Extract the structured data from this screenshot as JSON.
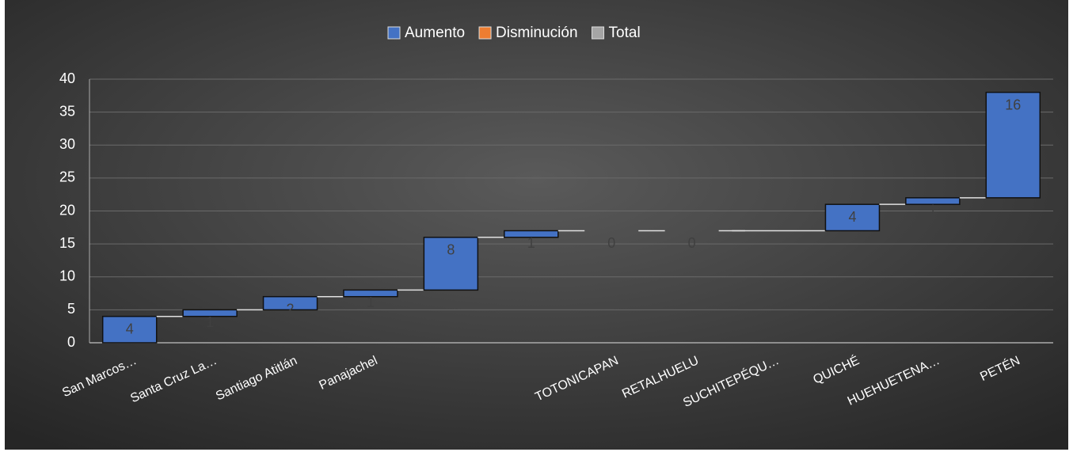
{
  "chart_data": {
    "type": "waterfall",
    "legend": [
      {
        "name": "Aumento",
        "color": "#4472c4"
      },
      {
        "name": "Disminución",
        "color": "#ed7d31"
      },
      {
        "name": "Total",
        "color": "#a5a5a5"
      }
    ],
    "categories": [
      "San Marcos…",
      "Santa Cruz La…",
      "Santiago Atitlán",
      "Panajachel",
      null,
      null,
      "TOTONICAPAN",
      "RETALHUELU",
      "SUCHITEPÉQU…",
      "QUICHÉ",
      "HUEHUETENA…",
      "PETÉN"
    ],
    "values": [
      4,
      1,
      2,
      1,
      8,
      1,
      0,
      0,
      null,
      4,
      1,
      16
    ],
    "ylim": [
      0,
      40
    ],
    "yticks": [
      0,
      5,
      10,
      15,
      20,
      25,
      30,
      35,
      40
    ],
    "grid": true
  }
}
